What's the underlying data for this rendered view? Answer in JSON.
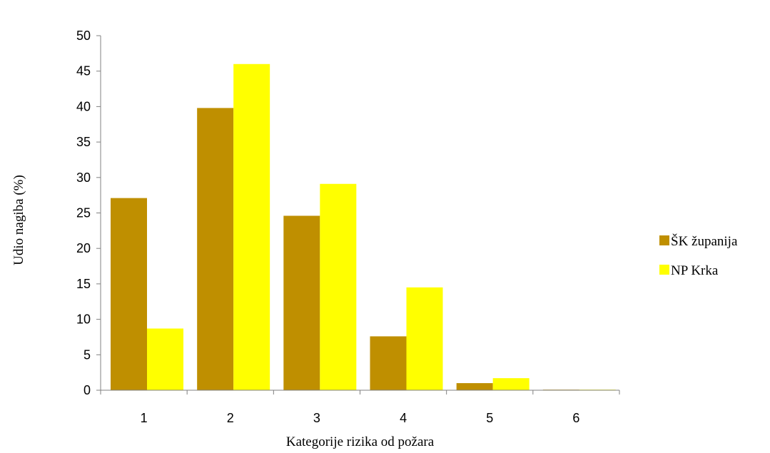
{
  "chart_data": {
    "type": "bar",
    "categories": [
      "1",
      "2",
      "3",
      "4",
      "5",
      "6"
    ],
    "series": [
      {
        "name": "ŠK županija",
        "color": "#bf8f00",
        "values": [
          27.1,
          39.8,
          24.6,
          7.6,
          1.0,
          0.05
        ]
      },
      {
        "name": "NP Krka",
        "color": "#ffff00",
        "values": [
          8.7,
          46.0,
          29.1,
          14.5,
          1.7,
          0.05
        ]
      }
    ],
    "xlabel": "Kategorije rizika od požara",
    "ylabel": "Udio nagiba (%)",
    "ylim": [
      0,
      50
    ],
    "yticks": [
      "0",
      "5",
      "10",
      "15",
      "20",
      "25",
      "30",
      "35",
      "40",
      "45",
      "50"
    ],
    "legend_position": "right",
    "grid": false
  }
}
